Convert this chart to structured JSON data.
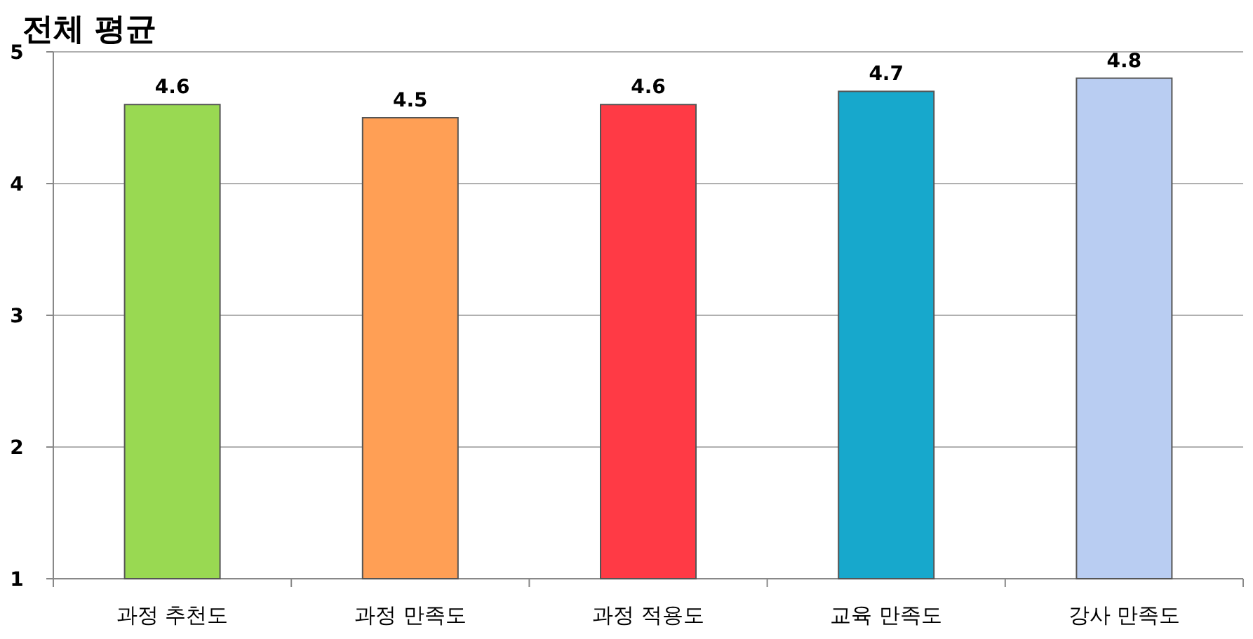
{
  "chart_data": {
    "type": "bar",
    "title": "전체 평균",
    "categories": [
      "과정 추천도",
      "과정 만족도",
      "과정 적용도",
      "교육 만족도",
      "강사 만족도"
    ],
    "values": [
      4.6,
      4.5,
      4.6,
      4.7,
      4.8
    ],
    "colors": [
      "#99d952",
      "#ff9f55",
      "#ff3a45",
      "#17a8cc",
      "#b9cdf2"
    ],
    "ylim": [
      1,
      5
    ],
    "yticks": [
      1,
      2,
      3,
      4,
      5
    ],
    "grid": "y",
    "data_labels": true
  }
}
